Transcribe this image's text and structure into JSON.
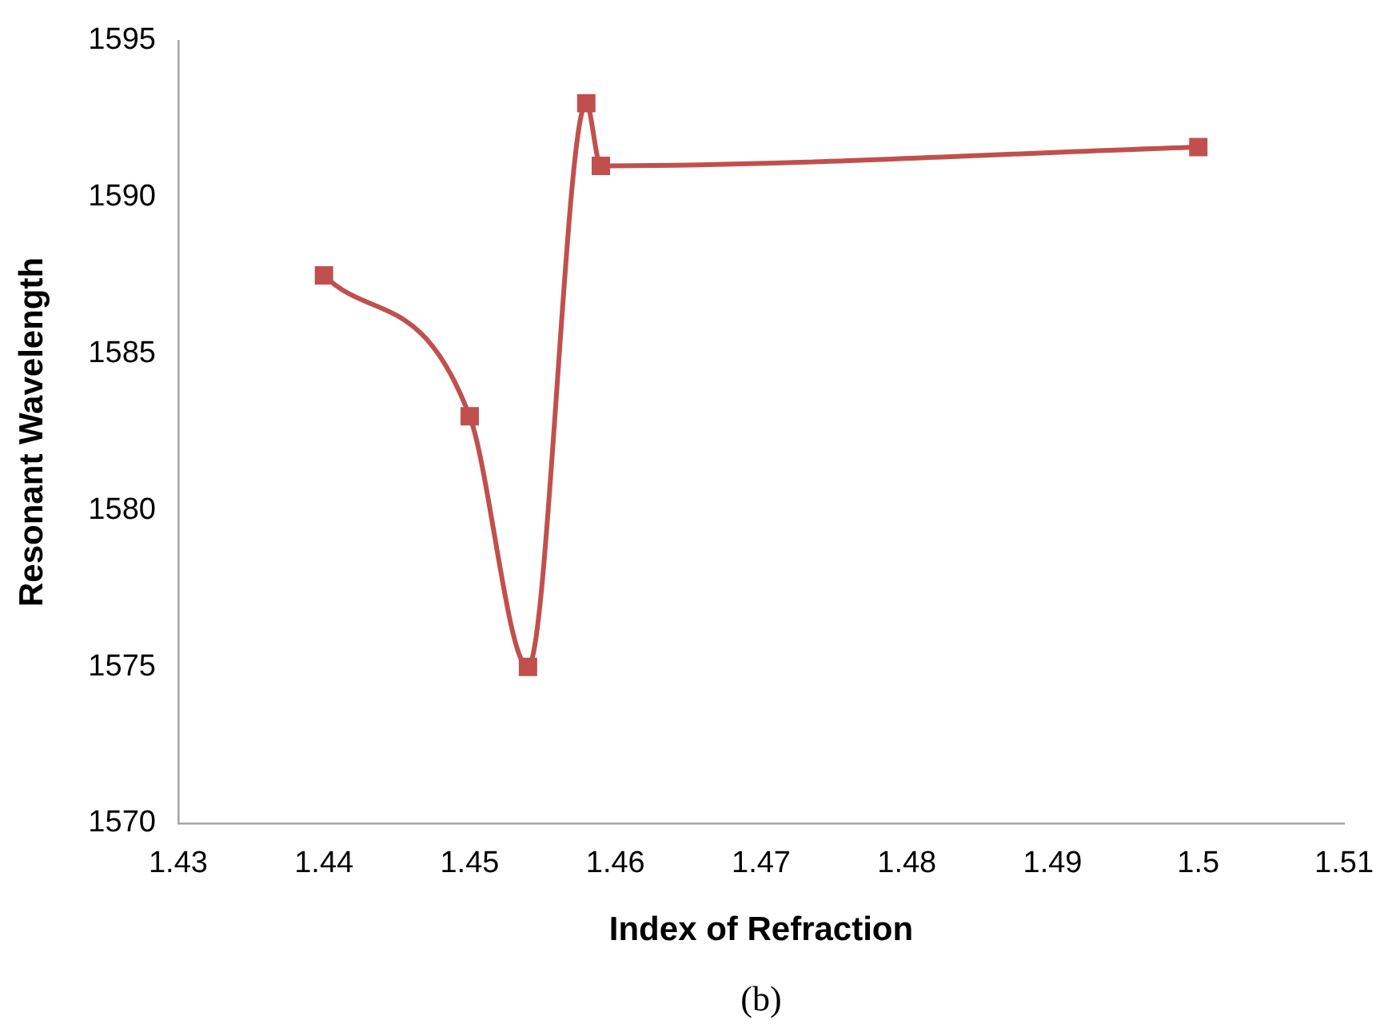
{
  "chart_data": {
    "type": "line",
    "xlabel": "Index of Refraction",
    "ylabel": "Resonant Wavelength",
    "x": [
      1.44,
      1.45,
      1.454,
      1.458,
      1.459,
      1.5
    ],
    "series": [
      {
        "color": "#c0504d",
        "values": [
          1587.5,
          1583,
          1575,
          1593,
          1591,
          1591.6
        ]
      }
    ],
    "xlim": [
      1.43,
      1.51
    ],
    "xticks": [
      1.43,
      1.44,
      1.45,
      1.46,
      1.47,
      1.48,
      1.49,
      1.5,
      1.51
    ],
    "ylim": [
      1570,
      1595
    ],
    "yticks": [
      1570,
      1575,
      1580,
      1585,
      1590,
      1595
    ],
    "grid": false,
    "legend": false,
    "marker": "square",
    "line_style": "solid",
    "annotations": [
      "(b)"
    ]
  }
}
